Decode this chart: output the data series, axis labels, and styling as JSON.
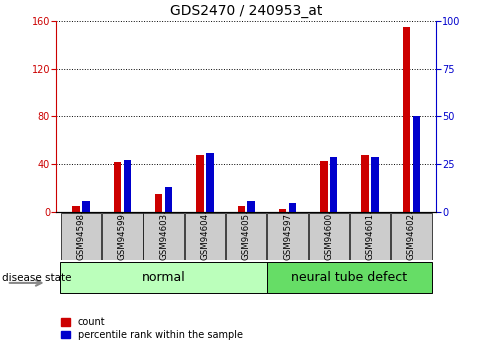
{
  "title": "GDS2470 / 240953_at",
  "samples": [
    "GSM94598",
    "GSM94599",
    "GSM94603",
    "GSM94604",
    "GSM94605",
    "GSM94597",
    "GSM94600",
    "GSM94601",
    "GSM94602"
  ],
  "count": [
    5,
    42,
    15,
    48,
    5,
    3,
    43,
    48,
    155
  ],
  "percentile": [
    6,
    27,
    13,
    31,
    6,
    5,
    29,
    29,
    50
  ],
  "groups": [
    {
      "label": "normal",
      "start": 0,
      "end": 5,
      "color": "#bbffbb"
    },
    {
      "label": "neural tube defect",
      "start": 5,
      "end": 9,
      "color": "#66dd66"
    }
  ],
  "left_ylim": [
    0,
    160
  ],
  "right_ylim": [
    0,
    100
  ],
  "left_yticks": [
    0,
    40,
    80,
    120,
    160
  ],
  "right_yticks": [
    0,
    25,
    50,
    75,
    100
  ],
  "red_bar_width": 0.18,
  "blue_bar_width": 0.18,
  "red_color": "#cc0000",
  "blue_color": "#0000cc",
  "title_fontsize": 10,
  "tick_fontsize": 7,
  "group_fontsize": 9,
  "disease_state_label": "disease state",
  "legend_count": "count",
  "legend_pct": "percentile rank within the sample",
  "plot_bg": "#ffffff",
  "label_bg": "#cccccc"
}
